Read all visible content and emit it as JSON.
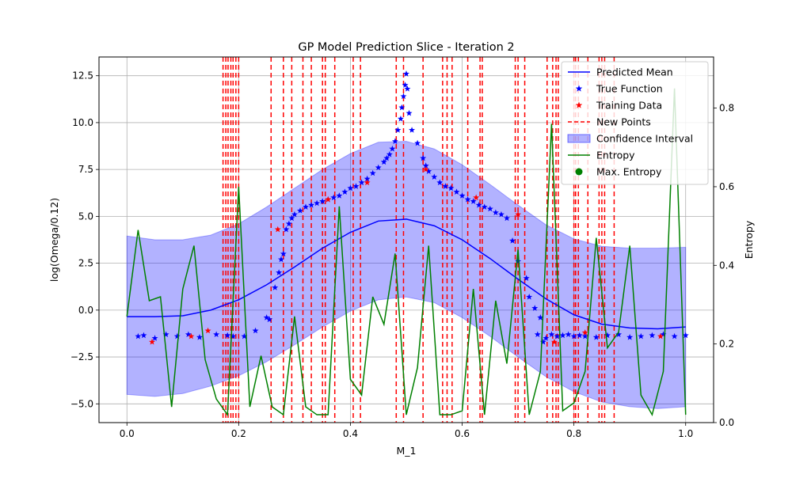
{
  "chart_data": {
    "type": "line",
    "title": "GP Model Prediction Slice - Iteration 2",
    "xlabel": "M_1",
    "ylabel": "log(Omega/0.12)",
    "y2label": "Entropy",
    "xlim": [
      -0.05,
      1.05
    ],
    "ylim": [
      -6.0,
      13.5
    ],
    "y2lim": [
      0.0,
      0.93
    ],
    "grid": true,
    "legend_position": "top-right",
    "xticks": [
      "0.0",
      "0.2",
      "0.4",
      "0.6",
      "0.8",
      "1.0"
    ],
    "yticks": [
      "−5.0",
      "−2.5",
      "0.0",
      "2.5",
      "5.0",
      "7.5",
      "10.0",
      "12.5"
    ],
    "y2ticks": [
      "0.0",
      "0.2",
      "0.4",
      "0.6",
      "0.8"
    ],
    "legend": [
      "Predicted Mean",
      "True Function",
      "Training Data",
      "New Points",
      "Confidence Interval",
      "Entropy",
      "Max. Entropy"
    ],
    "colors": {
      "mean": "#0000ff",
      "true_function": "#0000ff",
      "training": "#ff0000",
      "new_points": "#ff0000",
      "confidence": "#0000ff",
      "entropy": "#008000",
      "max_entropy": "#008000"
    },
    "predicted_mean": {
      "x": [
        0.0,
        0.05,
        0.1,
        0.15,
        0.2,
        0.25,
        0.3,
        0.35,
        0.4,
        0.45,
        0.5,
        0.55,
        0.6,
        0.65,
        0.7,
        0.75,
        0.8,
        0.85,
        0.9,
        0.95,
        1.0
      ],
      "y": [
        -0.35,
        -0.35,
        -0.3,
        0.0,
        0.55,
        1.35,
        2.3,
        3.3,
        4.15,
        4.75,
        4.85,
        4.5,
        3.75,
        2.75,
        1.65,
        0.6,
        -0.25,
        -0.75,
        -0.95,
        -1.0,
        -0.9
      ]
    },
    "confidence_interval": {
      "x": [
        0.0,
        0.05,
        0.1,
        0.15,
        0.2,
        0.25,
        0.3,
        0.35,
        0.4,
        0.45,
        0.5,
        0.55,
        0.6,
        0.65,
        0.7,
        0.75,
        0.8,
        0.85,
        0.9,
        0.95,
        1.0
      ],
      "upper": [
        3.95,
        3.75,
        3.75,
        4.0,
        4.6,
        5.5,
        6.5,
        7.5,
        8.35,
        8.95,
        9.0,
        8.6,
        7.75,
        6.7,
        5.6,
        4.55,
        3.8,
        3.4,
        3.3,
        3.3,
        3.35
      ],
      "lower": [
        -4.5,
        -4.6,
        -4.45,
        -4.05,
        -3.5,
        -2.75,
        -1.85,
        -0.9,
        -0.05,
        0.55,
        0.7,
        0.4,
        -0.4,
        -1.4,
        -2.5,
        -3.55,
        -4.35,
        -4.9,
        -5.15,
        -5.25,
        -5.15
      ]
    },
    "true_function": {
      "x": [
        0.02,
        0.03,
        0.05,
        0.07,
        0.09,
        0.11,
        0.13,
        0.16,
        0.18,
        0.19,
        0.21,
        0.23,
        0.25,
        0.255,
        0.265,
        0.272,
        0.276,
        0.28,
        0.285,
        0.29,
        0.295,
        0.3,
        0.31,
        0.32,
        0.33,
        0.34,
        0.35,
        0.36,
        0.37,
        0.38,
        0.39,
        0.4,
        0.41,
        0.42,
        0.43,
        0.44,
        0.45,
        0.46,
        0.465,
        0.47,
        0.475,
        0.48,
        0.485,
        0.49,
        0.492,
        0.495,
        0.498,
        0.5,
        0.502,
        0.505,
        0.51,
        0.52,
        0.53,
        0.535,
        0.54,
        0.55,
        0.56,
        0.57,
        0.58,
        0.59,
        0.6,
        0.61,
        0.62,
        0.63,
        0.64,
        0.65,
        0.66,
        0.67,
        0.68,
        0.69,
        0.7,
        0.715,
        0.72,
        0.73,
        0.735,
        0.74,
        0.745,
        0.75,
        0.76,
        0.77,
        0.78,
        0.79,
        0.8,
        0.81,
        0.82,
        0.84,
        0.86,
        0.88,
        0.9,
        0.92,
        0.94,
        0.96,
        0.98,
        1.0
      ],
      "y": [
        -1.4,
        -1.35,
        -1.5,
        -1.3,
        -1.4,
        -1.3,
        -1.45,
        -1.3,
        -1.35,
        -1.4,
        -1.4,
        -1.1,
        -0.4,
        -0.5,
        1.2,
        2.0,
        2.7,
        3.0,
        4.3,
        4.6,
        4.9,
        5.1,
        5.3,
        5.5,
        5.6,
        5.7,
        5.8,
        5.9,
        6.0,
        6.1,
        6.3,
        6.5,
        6.6,
        6.8,
        7.0,
        7.3,
        7.6,
        7.9,
        8.1,
        8.3,
        8.6,
        9.0,
        9.6,
        10.2,
        10.8,
        11.4,
        12.0,
        12.6,
        11.8,
        10.5,
        9.6,
        8.9,
        8.1,
        7.7,
        7.4,
        7.1,
        6.8,
        6.6,
        6.5,
        6.3,
        6.1,
        5.9,
        5.8,
        5.6,
        5.5,
        5.4,
        5.2,
        5.1,
        4.9,
        3.7,
        2.6,
        1.7,
        0.7,
        0.1,
        -1.3,
        -0.4,
        -1.7,
        -1.5,
        -1.3,
        -1.4,
        -1.35,
        -1.3,
        -1.4,
        -1.35,
        -1.4,
        -1.45,
        -1.35,
        -1.3,
        -1.45,
        -1.4,
        -1.35,
        -1.3,
        -1.4,
        -1.35
      ]
    },
    "training_data": {
      "x": [
        0.045,
        0.115,
        0.145,
        0.27,
        0.36,
        0.43,
        0.535,
        0.625,
        0.7,
        0.765,
        0.82,
        0.955
      ],
      "y": [
        -1.7,
        -1.4,
        -1.1,
        4.3,
        5.9,
        6.8,
        7.5,
        6.0,
        5.1,
        -1.7,
        -1.2,
        -1.4
      ]
    },
    "new_points": [
      0.172,
      0.177,
      0.181,
      0.186,
      0.19,
      0.195,
      0.2,
      0.258,
      0.28,
      0.295,
      0.315,
      0.33,
      0.35,
      0.355,
      0.372,
      0.405,
      0.418,
      0.482,
      0.495,
      0.53,
      0.565,
      0.573,
      0.582,
      0.61,
      0.632,
      0.636,
      0.695,
      0.7,
      0.712,
      0.752,
      0.762,
      0.768,
      0.772,
      0.8,
      0.803,
      0.808,
      0.825,
      0.845,
      0.85,
      0.855,
      0.872
    ],
    "entropy": {
      "x": [
        0.0,
        0.02,
        0.04,
        0.06,
        0.08,
        0.1,
        0.12,
        0.14,
        0.16,
        0.18,
        0.2,
        0.22,
        0.24,
        0.26,
        0.28,
        0.3,
        0.32,
        0.34,
        0.36,
        0.38,
        0.4,
        0.42,
        0.44,
        0.46,
        0.48,
        0.5,
        0.52,
        0.54,
        0.56,
        0.58,
        0.6,
        0.62,
        0.64,
        0.66,
        0.68,
        0.7,
        0.72,
        0.74,
        0.76,
        0.78,
        0.8,
        0.82,
        0.84,
        0.86,
        0.88,
        0.9,
        0.92,
        0.94,
        0.96,
        0.98,
        1.0
      ],
      "y": [
        0.27,
        0.49,
        0.31,
        0.32,
        0.04,
        0.34,
        0.45,
        0.16,
        0.06,
        0.02,
        0.6,
        0.04,
        0.17,
        0.04,
        0.02,
        0.27,
        0.04,
        0.02,
        0.02,
        0.55,
        0.11,
        0.07,
        0.32,
        0.25,
        0.43,
        0.02,
        0.14,
        0.45,
        0.02,
        0.02,
        0.03,
        0.34,
        0.02,
        0.31,
        0.15,
        0.44,
        0.02,
        0.13,
        0.76,
        0.03,
        0.05,
        0.13,
        0.47,
        0.19,
        0.23,
        0.45,
        0.07,
        0.02,
        0.13,
        0.85,
        0.02
      ]
    },
    "max_entropy": {
      "x": 0.985,
      "y": 0.85
    }
  }
}
